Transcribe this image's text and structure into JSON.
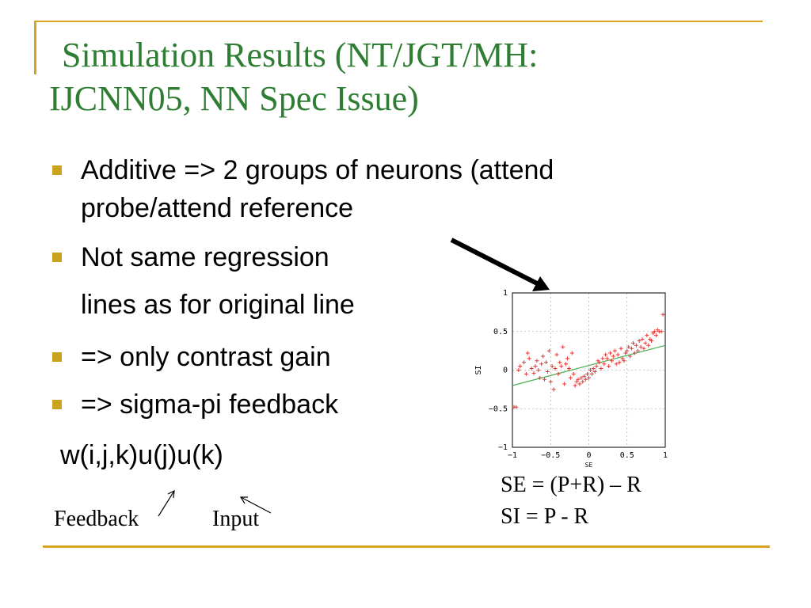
{
  "slide": {
    "title_line1": "Simulation Results (NT/JGT/MH:",
    "title_line2": "IJCNN05, NN Spec Issue)",
    "bullets": [
      {
        "line1": "Additive => 2 groups of neurons (attend",
        "line2": "probe/attend reference"
      },
      {
        "line1": "Not same regression",
        "line2": "lines as for original line"
      },
      {
        "line1": "=> only contrast gain"
      },
      {
        "line1": "=> sigma-pi feedback"
      }
    ],
    "formula": "w(i,j,k)u(j)u(k)",
    "label_feedback": "Feedback",
    "label_input": "Input",
    "def_se": "SE = (P+R) – R",
    "def_si": "SI = P - R",
    "colors": {
      "title": "#2e7d32",
      "accent": "#d9a520",
      "points": "#e53935",
      "fit": "#4caf50"
    }
  },
  "chart_data": {
    "type": "scatter",
    "xlabel": "SE",
    "ylabel": "SI",
    "xlim": [
      -1,
      1
    ],
    "ylim": [
      -1,
      1
    ],
    "xticks": [
      "−1",
      "−0.5",
      "0",
      "0.5",
      "1"
    ],
    "yticks": [
      "1",
      "0.5",
      "0",
      "−0.5",
      "−1"
    ],
    "grid": true,
    "points": [
      [
        -0.98,
        -0.48
      ],
      [
        -0.95,
        -0.48
      ],
      [
        -0.92,
        0.0
      ],
      [
        -0.9,
        0.05
      ],
      [
        -0.85,
        0.1
      ],
      [
        -0.82,
        -0.05
      ],
      [
        -0.8,
        0.22
      ],
      [
        -0.78,
        0.15
      ],
      [
        -0.75,
        0.02
      ],
      [
        -0.72,
        -0.04
      ],
      [
        -0.7,
        0.05
      ],
      [
        -0.68,
        0.12
      ],
      [
        -0.66,
        0.0
      ],
      [
        -0.64,
        -0.1
      ],
      [
        -0.62,
        0.08
      ],
      [
        -0.6,
        0.18
      ],
      [
        -0.58,
        -0.12
      ],
      [
        -0.56,
        0.1
      ],
      [
        -0.54,
        -0.02
      ],
      [
        -0.52,
        0.25
      ],
      [
        -0.5,
        -0.15
      ],
      [
        -0.48,
        0.05
      ],
      [
        -0.46,
        -0.25
      ],
      [
        -0.44,
        0.02
      ],
      [
        -0.42,
        0.2
      ],
      [
        -0.4,
        -0.05
      ],
      [
        -0.38,
        0.1
      ],
      [
        -0.36,
        0.05
      ],
      [
        -0.34,
        0.3
      ],
      [
        -0.32,
        -0.18
      ],
      [
        -0.3,
        0.08
      ],
      [
        -0.28,
        0.15
      ],
      [
        -0.26,
        0.02
      ],
      [
        -0.24,
        -0.1
      ],
      [
        -0.22,
        0.22
      ],
      [
        -0.2,
        -0.05
      ],
      [
        -0.18,
        -0.2
      ],
      [
        -0.16,
        -0.15
      ],
      [
        -0.14,
        -0.12
      ],
      [
        -0.12,
        -0.18
      ],
      [
        -0.1,
        -0.1
      ],
      [
        -0.08,
        -0.15
      ],
      [
        -0.06,
        -0.08
      ],
      [
        -0.04,
        -0.12
      ],
      [
        -0.02,
        -0.05
      ],
      [
        0.0,
        -0.1
      ],
      [
        0.02,
        0.0
      ],
      [
        0.04,
        -0.05
      ],
      [
        0.06,
        0.02
      ],
      [
        0.08,
        -0.02
      ],
      [
        0.1,
        0.05
      ],
      [
        0.12,
        0.12
      ],
      [
        0.14,
        0.1
      ],
      [
        0.16,
        0.02
      ],
      [
        0.18,
        0.15
      ],
      [
        0.2,
        0.08
      ],
      [
        0.22,
        0.2
      ],
      [
        0.24,
        0.15
      ],
      [
        0.26,
        0.05
      ],
      [
        0.28,
        0.22
      ],
      [
        0.3,
        0.12
      ],
      [
        0.32,
        0.18
      ],
      [
        0.34,
        0.25
      ],
      [
        0.36,
        0.08
      ],
      [
        0.38,
        0.2
      ],
      [
        0.4,
        0.1
      ],
      [
        0.42,
        0.28
      ],
      [
        0.44,
        0.15
      ],
      [
        0.46,
        0.12
      ],
      [
        0.48,
        0.22
      ],
      [
        0.5,
        0.25
      ],
      [
        0.52,
        0.3
      ],
      [
        0.54,
        0.18
      ],
      [
        0.56,
        0.28
      ],
      [
        0.58,
        0.35
      ],
      [
        0.6,
        0.22
      ],
      [
        0.62,
        0.32
      ],
      [
        0.64,
        0.25
      ],
      [
        0.66,
        0.38
      ],
      [
        0.68,
        0.3
      ],
      [
        0.7,
        0.4
      ],
      [
        0.72,
        0.28
      ],
      [
        0.74,
        0.35
      ],
      [
        0.76,
        0.45
      ],
      [
        0.78,
        0.32
      ],
      [
        0.8,
        0.4
      ],
      [
        0.82,
        0.38
      ],
      [
        0.84,
        0.48
      ],
      [
        0.86,
        0.5
      ],
      [
        0.88,
        0.45
      ],
      [
        0.9,
        0.52
      ],
      [
        0.92,
        0.5
      ],
      [
        0.95,
        0.5
      ],
      [
        0.97,
        0.72
      ]
    ],
    "fit_line": [
      [
        -1,
        -0.2
      ],
      [
        1,
        0.32
      ]
    ]
  }
}
